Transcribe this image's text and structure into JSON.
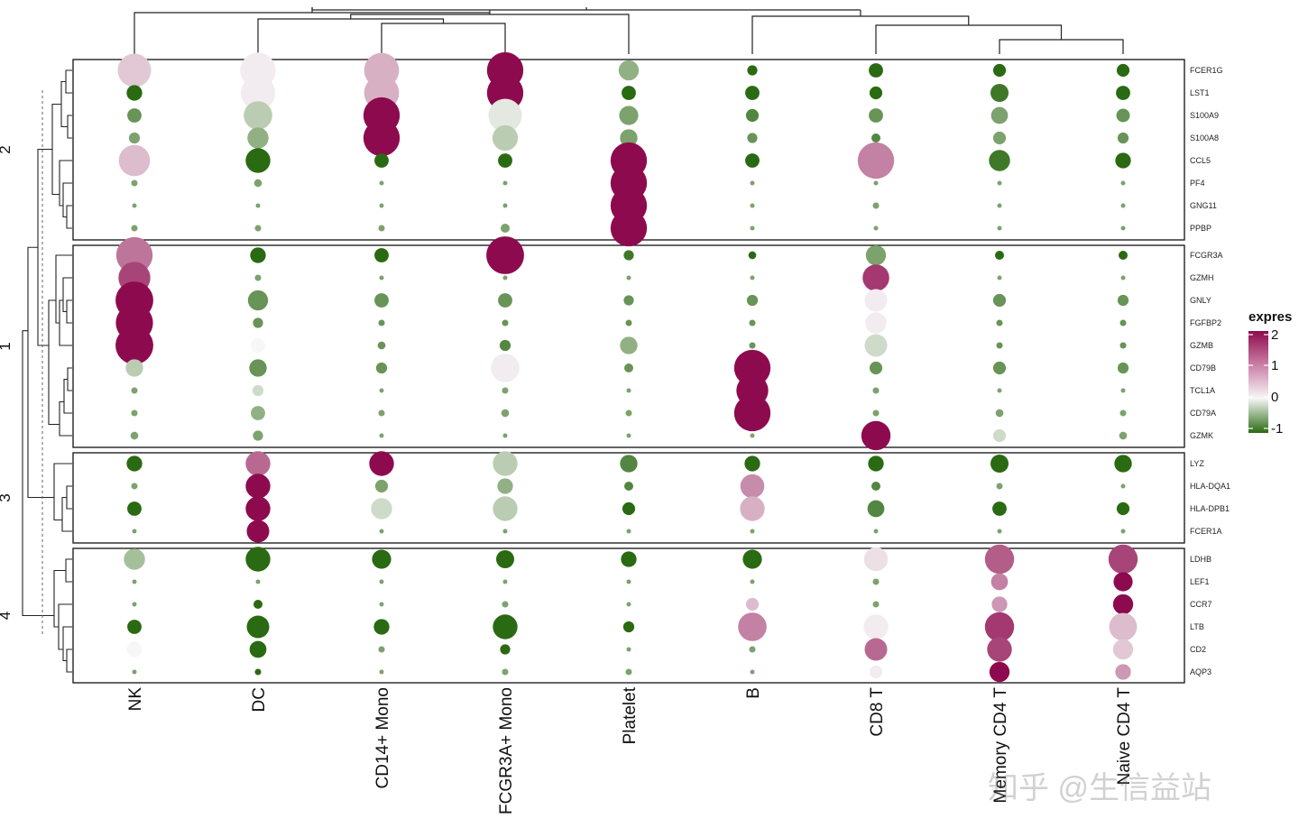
{
  "chart_data": {
    "type": "dotplot",
    "cell_types": [
      "NK",
      "DC",
      "CD14+ Mono",
      "FCGR3A+ Mono",
      "Platelet",
      "B",
      "CD8 T",
      "Memory CD4 T",
      "Naive CD4 T"
    ],
    "gene_groups": [
      {
        "label": "2",
        "genes": [
          "FCER1G",
          "LST1",
          "S100A9",
          "S100A8",
          "CCL5",
          "PF4",
          "GNG11",
          "PPBP"
        ]
      },
      {
        "label": "1",
        "genes": [
          "FCGR3A",
          "GZMH",
          "GNLY",
          "FGFBP2",
          "GZMB",
          "CD79B",
          "TCL1A",
          "CD79A",
          "GZMK"
        ]
      },
      {
        "label": "3",
        "genes": [
          "LYZ",
          "HLA-DQA1",
          "HLA-DPB1",
          "FCER1A"
        ]
      },
      {
        "label": "4",
        "genes": [
          "LDHB",
          "LEF1",
          "CCR7",
          "LTB",
          "CD2",
          "AQP3"
        ]
      }
    ],
    "size_note": "size = fraction of cells expressing (0-1); value = scaled expression",
    "data": {
      "FCER1G": {
        "size": [
          0.55,
          0.62,
          0.6,
          0.65,
          0.2,
          0.05,
          0.1,
          0.08,
          0.08
        ],
        "value": [
          0.4,
          0.1,
          0.6,
          2.0,
          -0.5,
          -1.0,
          -1.0,
          -1.0,
          -1.0
        ]
      },
      "LST1": {
        "size": [
          0.12,
          0.58,
          0.6,
          0.65,
          0.1,
          0.1,
          0.08,
          0.16,
          0.1
        ],
        "value": [
          -1.0,
          0.1,
          0.6,
          2.0,
          -1.0,
          -1.0,
          -1.0,
          -0.9,
          -1.0
        ]
      },
      "S100A9": {
        "size": [
          0.1,
          0.4,
          0.65,
          0.55,
          0.18,
          0.08,
          0.1,
          0.14,
          0.09
        ],
        "value": [
          -0.7,
          -0.3,
          2.0,
          -0.1,
          -0.6,
          -0.8,
          -0.7,
          -0.6,
          -0.7
        ]
      },
      "S100A8": {
        "size": [
          0.06,
          0.22,
          0.65,
          0.32,
          0.15,
          0.05,
          0.04,
          0.08,
          0.06
        ],
        "value": [
          -0.6,
          -0.5,
          2.0,
          -0.3,
          -0.6,
          -0.7,
          -0.8,
          -0.6,
          -0.7
        ]
      },
      "CCL5": {
        "size": [
          0.48,
          0.3,
          0.1,
          0.1,
          0.65,
          0.1,
          0.65,
          0.22,
          0.12
        ],
        "value": [
          0.5,
          -1.0,
          -1.0,
          -1.0,
          2.0,
          -1.0,
          1.0,
          -0.9,
          -1.0
        ]
      },
      "PF4": {
        "size": [
          0.02,
          0.03,
          0.01,
          0.01,
          0.65,
          0.01,
          0.01,
          0.01,
          0.01
        ],
        "value": [
          -0.6,
          -0.6,
          -0.6,
          -0.6,
          2.0,
          -0.6,
          -0.6,
          -0.6,
          -0.6
        ]
      },
      "GNG11": {
        "size": [
          0.01,
          0.01,
          0.01,
          0.01,
          0.65,
          0.01,
          0.02,
          0.01,
          0.01
        ],
        "value": [
          -0.6,
          -0.6,
          -0.6,
          -0.6,
          2.0,
          -0.6,
          -0.6,
          -0.6,
          -0.6
        ]
      },
      "PPBP": {
        "size": [
          0.02,
          0.02,
          0.02,
          0.04,
          0.65,
          0.01,
          0.01,
          0.01,
          0.01
        ],
        "value": [
          -0.6,
          -0.6,
          -0.6,
          -0.6,
          2.0,
          -0.6,
          -0.6,
          -0.6,
          -0.6
        ]
      },
      "FCGR3A": {
        "size": [
          0.65,
          0.12,
          0.1,
          0.7,
          0.05,
          0.03,
          0.2,
          0.04,
          0.04
        ],
        "value": [
          1.1,
          -1.0,
          -1.0,
          2.0,
          -0.9,
          -1.0,
          -0.6,
          -1.0,
          -1.0
        ]
      },
      "GZMH": {
        "size": [
          0.5,
          0.02,
          0.01,
          0.01,
          0.01,
          0.01,
          0.35,
          0.01,
          0.01
        ],
        "value": [
          1.5,
          -0.6,
          -0.6,
          -0.6,
          -0.6,
          -0.6,
          1.6,
          -0.6,
          -0.6
        ]
      },
      "GNLY": {
        "size": [
          0.7,
          0.2,
          0.1,
          0.1,
          0.05,
          0.06,
          0.25,
          0.08,
          0.06
        ],
        "value": [
          2.0,
          -0.7,
          -0.7,
          -0.7,
          -0.7,
          -0.7,
          0.1,
          -0.7,
          -0.7
        ]
      },
      "FGFBP2": {
        "size": [
          0.68,
          0.05,
          0.02,
          0.02,
          0.02,
          0.02,
          0.22,
          0.02,
          0.02
        ],
        "value": [
          2.0,
          -0.7,
          -0.7,
          -0.7,
          -0.7,
          -0.7,
          0.1,
          -0.7,
          -0.7
        ]
      },
      "GZMB": {
        "size": [
          0.7,
          0.1,
          0.03,
          0.06,
          0.15,
          0.02,
          0.25,
          0.02,
          0.02
        ],
        "value": [
          2.0,
          0.0,
          -0.7,
          -0.8,
          -0.5,
          -0.7,
          -0.2,
          -0.7,
          -0.7
        ]
      },
      "CD79B": {
        "size": [
          0.15,
          0.15,
          0.06,
          0.4,
          0.04,
          0.65,
          0.08,
          0.08,
          0.06
        ],
        "value": [
          -0.3,
          -0.7,
          -0.7,
          0.1,
          -0.7,
          2.0,
          -0.7,
          -0.7,
          -0.7
        ]
      },
      "TCL1A": {
        "size": [
          0.02,
          0.06,
          0.01,
          0.02,
          0.01,
          0.5,
          0.02,
          0.01,
          0.01
        ],
        "value": [
          -0.6,
          -0.2,
          -0.6,
          -0.6,
          -0.6,
          2.0,
          -0.6,
          -0.6,
          -0.6
        ]
      },
      "CD79A": {
        "size": [
          0.02,
          0.1,
          0.02,
          0.03,
          0.02,
          0.65,
          0.02,
          0.03,
          0.02
        ],
        "value": [
          -0.6,
          -0.5,
          -0.6,
          -0.6,
          -0.6,
          2.0,
          -0.6,
          -0.6,
          -0.6
        ]
      },
      "GZMK": {
        "size": [
          0.03,
          0.05,
          0.01,
          0.01,
          0.01,
          0.01,
          0.42,
          0.08,
          0.03
        ],
        "value": [
          -0.6,
          -0.6,
          -0.6,
          -0.6,
          -0.6,
          -0.6,
          2.0,
          -0.2,
          -0.6
        ]
      },
      "LYZ": {
        "size": [
          0.12,
          0.3,
          0.3,
          0.3,
          0.15,
          0.12,
          0.12,
          0.16,
          0.15
        ],
        "value": [
          -1.0,
          1.2,
          2.0,
          -0.3,
          -0.8,
          -1.0,
          -1.0,
          -1.0,
          -1.0
        ]
      },
      "HLA-DQA1": {
        "size": [
          0.02,
          0.3,
          0.08,
          0.12,
          0.04,
          0.28,
          0.04,
          0.02,
          0.01
        ],
        "value": [
          -0.6,
          2.0,
          -0.6,
          -0.5,
          -0.8,
          0.9,
          -0.8,
          -0.6,
          -0.6
        ]
      },
      "HLA-DPB1": {
        "size": [
          0.1,
          0.3,
          0.22,
          0.3,
          0.08,
          0.3,
          0.14,
          0.1,
          0.08
        ],
        "value": [
          -1.0,
          2.0,
          -0.2,
          -0.3,
          -1.0,
          0.6,
          -0.8,
          -1.0,
          -1.0
        ]
      },
      "FCER1A": {
        "size": [
          0.01,
          0.25,
          0.01,
          0.01,
          0.01,
          0.01,
          0.01,
          0.01,
          0.01
        ],
        "value": [
          -0.6,
          2.0,
          -0.6,
          -0.6,
          -0.6,
          -0.6,
          -0.6,
          -0.6,
          -0.6
        ]
      },
      "LDHB": {
        "size": [
          0.22,
          0.3,
          0.18,
          0.16,
          0.12,
          0.18,
          0.28,
          0.42,
          0.42
        ],
        "value": [
          -0.4,
          -1.0,
          -1.0,
          -1.0,
          -1.0,
          -1.0,
          0.2,
          1.3,
          1.5
        ]
      },
      "LEF1": {
        "size": [
          0.01,
          0.01,
          0.01,
          0.01,
          0.01,
          0.01,
          0.02,
          0.14,
          0.18
        ],
        "value": [
          -0.6,
          -0.6,
          -0.6,
          -0.6,
          -0.6,
          -0.6,
          -0.6,
          1.0,
          2.0
        ]
      },
      "CCR7": {
        "size": [
          0.01,
          0.04,
          0.01,
          0.02,
          0.01,
          0.08,
          0.02,
          0.12,
          0.2
        ],
        "value": [
          -0.6,
          -1.0,
          -0.6,
          -0.6,
          -0.6,
          0.5,
          -0.6,
          0.8,
          2.0
        ]
      },
      "LTB": {
        "size": [
          0.1,
          0.25,
          0.12,
          0.3,
          0.06,
          0.4,
          0.3,
          0.42,
          0.38
        ],
        "value": [
          -1.0,
          -1.0,
          -1.0,
          -1.0,
          -1.0,
          1.0,
          0.1,
          1.6,
          0.5
        ]
      },
      "CD2": {
        "size": [
          0.12,
          0.14,
          0.02,
          0.05,
          0.01,
          0.02,
          0.25,
          0.3,
          0.2
        ],
        "value": [
          0.0,
          -1.0,
          -0.6,
          -1.0,
          -0.6,
          -0.6,
          1.2,
          1.5,
          0.4
        ]
      },
      "AQP3": {
        "size": [
          0.01,
          0.02,
          0.01,
          0.02,
          0.02,
          0.01,
          0.08,
          0.2,
          0.12
        ],
        "value": [
          -0.6,
          -1.0,
          -0.6,
          -0.6,
          -0.6,
          -0.6,
          0.1,
          2.0,
          0.8
        ]
      }
    },
    "colorbar": {
      "title": "expres",
      "ticks": [
        "2",
        "1",
        "0",
        "-1"
      ],
      "range": [
        -1,
        2
      ],
      "colors": {
        "low": "#2a6a12",
        "mid": "#f7f7f7",
        "high": "#8e0a4e"
      }
    }
  },
  "watermark": "知乎 @生信益站"
}
